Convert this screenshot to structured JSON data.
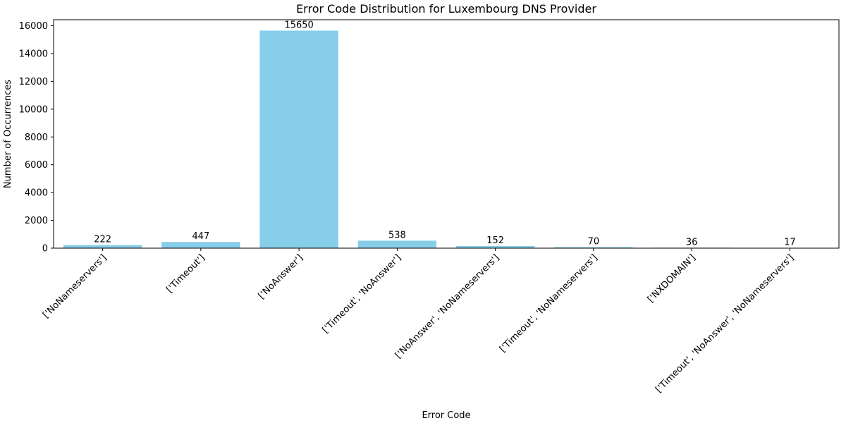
{
  "chart_data": {
    "type": "bar",
    "title": "Error Code Distribution for Luxembourg DNS Provider",
    "xlabel": "Error Code",
    "ylabel": "Number of Occurrences",
    "categories": [
      "['NoNameservers']",
      "['Timeout']",
      "['NoAnswer']",
      "['Timeout', 'NoAnswer']",
      "['NoAnswer', 'NoNameservers']",
      "['Timeout', 'NoNameservers']",
      "['NXDOMAIN']",
      "['Timeout', 'NoAnswer', 'NoNameservers']"
    ],
    "values": [
      222,
      447,
      15650,
      538,
      152,
      70,
      36,
      17
    ],
    "data_labels": [
      "222",
      "447",
      "15650",
      "538",
      "152",
      "70",
      "36",
      "17"
    ],
    "yticks": [
      0,
      2000,
      4000,
      6000,
      8000,
      10000,
      12000,
      14000,
      16000
    ],
    "ytick_labels": [
      "0",
      "2000",
      "4000",
      "6000",
      "8000",
      "10000",
      "12000",
      "14000",
      "16000"
    ],
    "ylim": [
      0,
      16432
    ],
    "grid": false,
    "colors": {
      "bar": "#87ceeb",
      "axis": "#000000"
    }
  }
}
